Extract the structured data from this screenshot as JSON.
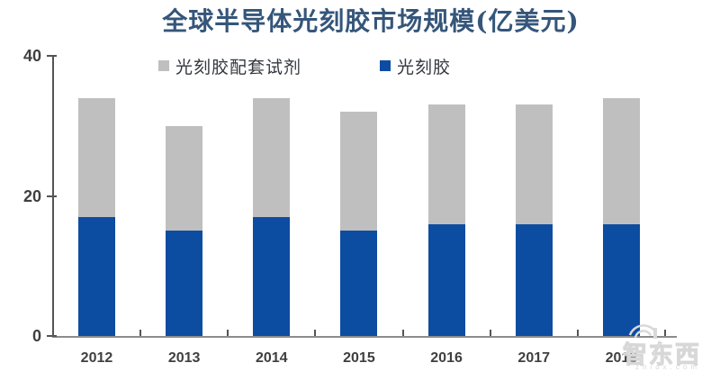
{
  "title": "全球半导体光刻胶市场规模(亿美元)",
  "legend": [
    {
      "label": "光刻胶配套试剂",
      "color": "#BFBFBF"
    },
    {
      "label": "光刻胶",
      "color": "#0C4DA2"
    }
  ],
  "chart_data": {
    "type": "bar",
    "stacked": true,
    "title": "全球半导体光刻胶市场规模(亿美元)",
    "categories": [
      "2012",
      "2013",
      "2014",
      "2015",
      "2016",
      "2017",
      "2018"
    ],
    "series": [
      {
        "name": "光刻胶",
        "color": "#0C4DA2",
        "values": [
          17,
          15,
          17,
          15,
          16,
          16,
          16
        ]
      },
      {
        "name": "光刻胶配套试剂",
        "color": "#BFBFBF",
        "values": [
          17,
          15,
          17,
          17,
          17,
          17,
          18
        ]
      }
    ],
    "ylim": [
      0,
      40
    ],
    "yticks": [
      0,
      20,
      40
    ],
    "xlabel": "",
    "ylabel": "",
    "grid": false,
    "legend_position": "top-inside"
  },
  "watermark": {
    "brand": "智东西",
    "domain_text": "zhidx.com"
  }
}
